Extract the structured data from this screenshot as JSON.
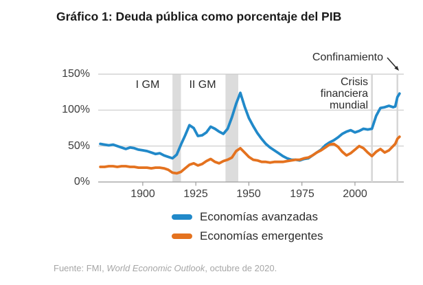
{
  "title": "Gráfico 1: Deuda pública como porcentaje del PIB",
  "y_axis_labels": [
    "150%",
    "100%",
    "50%",
    "0%"
  ],
  "x_axis_labels": [
    "1900",
    "1925",
    "1950",
    "1975",
    "2000"
  ],
  "annotations": {
    "wwi": "I GM",
    "wwii": "II GM",
    "lockdown": "Confinamiento",
    "gfc_lines": [
      "Crisis",
      "financiera",
      "mundial"
    ]
  },
  "legend": {
    "items": [
      {
        "label": "Economías avanzadas",
        "color": "#2189c9"
      },
      {
        "label": "Economías emergentes",
        "color": "#e4721f"
      }
    ]
  },
  "source": {
    "prefix": "Fuente: FMI, ",
    "publication": "World Economic Outlook",
    "suffix": ", octubre de 2020."
  },
  "colors": {
    "advanced": "#2189c9",
    "emerging": "#e4721f",
    "band": "#dcdcdc",
    "event_line": "#d6d6d6",
    "grid": "#c9c9c9",
    "axis": "#9b9b9b"
  },
  "chart_data": {
    "type": "line",
    "title": "Deuda pública como porcentaje del PIB",
    "xlabel": "",
    "ylabel": "",
    "x_range": [
      1879,
      2023
    ],
    "y_range": [
      0,
      150
    ],
    "x_ticks": [
      1900,
      1925,
      1950,
      1975,
      2000
    ],
    "y_ticks": [
      0,
      50,
      100,
      150
    ],
    "grid": true,
    "legend_position": "bottom",
    "shaded_regions": [
      {
        "label": "I GM",
        "from": 1914,
        "to": 1918
      },
      {
        "label": "II GM",
        "from": 1939,
        "to": 1945
      }
    ],
    "event_lines": [
      {
        "label": "Crisis financiera mundial",
        "year": 2008
      },
      {
        "label": "Confinamiento",
        "year": 2020
      }
    ],
    "series": [
      {
        "name": "Economías avanzadas",
        "color": "#2189c9",
        "points": [
          [
            1880,
            53
          ],
          [
            1882,
            52
          ],
          [
            1884,
            51
          ],
          [
            1886,
            52
          ],
          [
            1888,
            50
          ],
          [
            1890,
            48
          ],
          [
            1892,
            46
          ],
          [
            1894,
            48
          ],
          [
            1896,
            47
          ],
          [
            1898,
            45
          ],
          [
            1900,
            44
          ],
          [
            1902,
            43
          ],
          [
            1904,
            41
          ],
          [
            1906,
            39
          ],
          [
            1908,
            40
          ],
          [
            1910,
            37
          ],
          [
            1912,
            35
          ],
          [
            1914,
            33
          ],
          [
            1916,
            38
          ],
          [
            1918,
            52
          ],
          [
            1920,
            65
          ],
          [
            1922,
            79
          ],
          [
            1924,
            75
          ],
          [
            1926,
            64
          ],
          [
            1928,
            65
          ],
          [
            1930,
            69
          ],
          [
            1932,
            77
          ],
          [
            1934,
            74
          ],
          [
            1936,
            70
          ],
          [
            1938,
            67
          ],
          [
            1940,
            74
          ],
          [
            1942,
            90
          ],
          [
            1944,
            109
          ],
          [
            1946,
            124
          ],
          [
            1948,
            105
          ],
          [
            1950,
            89
          ],
          [
            1952,
            78
          ],
          [
            1954,
            68
          ],
          [
            1956,
            60
          ],
          [
            1958,
            53
          ],
          [
            1960,
            48
          ],
          [
            1962,
            44
          ],
          [
            1964,
            40
          ],
          [
            1966,
            36
          ],
          [
            1968,
            33
          ],
          [
            1970,
            31
          ],
          [
            1972,
            31
          ],
          [
            1974,
            30
          ],
          [
            1976,
            32
          ],
          [
            1978,
            33
          ],
          [
            1980,
            37
          ],
          [
            1982,
            41
          ],
          [
            1984,
            45
          ],
          [
            1986,
            51
          ],
          [
            1988,
            55
          ],
          [
            1990,
            58
          ],
          [
            1992,
            62
          ],
          [
            1994,
            67
          ],
          [
            1996,
            70
          ],
          [
            1998,
            72
          ],
          [
            2000,
            69
          ],
          [
            2002,
            71
          ],
          [
            2004,
            74
          ],
          [
            2006,
            73
          ],
          [
            2008,
            74
          ],
          [
            2010,
            92
          ],
          [
            2012,
            103
          ],
          [
            2014,
            104
          ],
          [
            2016,
            106
          ],
          [
            2018,
            104
          ],
          [
            2019,
            105
          ],
          [
            2020,
            118
          ],
          [
            2021,
            123
          ]
        ]
      },
      {
        "name": "Economías emergentes",
        "color": "#e4721f",
        "points": [
          [
            1880,
            21
          ],
          [
            1882,
            21
          ],
          [
            1884,
            22
          ],
          [
            1886,
            22
          ],
          [
            1888,
            21
          ],
          [
            1890,
            22
          ],
          [
            1892,
            22
          ],
          [
            1894,
            21
          ],
          [
            1896,
            21
          ],
          [
            1898,
            20
          ],
          [
            1900,
            20
          ],
          [
            1902,
            20
          ],
          [
            1904,
            19
          ],
          [
            1906,
            20
          ],
          [
            1908,
            20
          ],
          [
            1910,
            19
          ],
          [
            1912,
            17
          ],
          [
            1914,
            13
          ],
          [
            1916,
            12
          ],
          [
            1918,
            14
          ],
          [
            1920,
            19
          ],
          [
            1922,
            24
          ],
          [
            1924,
            26
          ],
          [
            1926,
            23
          ],
          [
            1928,
            25
          ],
          [
            1930,
            29
          ],
          [
            1932,
            32
          ],
          [
            1934,
            28
          ],
          [
            1936,
            26
          ],
          [
            1938,
            29
          ],
          [
            1940,
            31
          ],
          [
            1942,
            34
          ],
          [
            1944,
            43
          ],
          [
            1946,
            47
          ],
          [
            1948,
            41
          ],
          [
            1950,
            35
          ],
          [
            1952,
            31
          ],
          [
            1954,
            30
          ],
          [
            1956,
            28
          ],
          [
            1958,
            28
          ],
          [
            1960,
            27
          ],
          [
            1962,
            28
          ],
          [
            1964,
            28
          ],
          [
            1966,
            28
          ],
          [
            1968,
            29
          ],
          [
            1970,
            30
          ],
          [
            1972,
            31
          ],
          [
            1974,
            31
          ],
          [
            1976,
            33
          ],
          [
            1978,
            34
          ],
          [
            1980,
            37
          ],
          [
            1982,
            41
          ],
          [
            1984,
            44
          ],
          [
            1986,
            48
          ],
          [
            1988,
            52
          ],
          [
            1990,
            53
          ],
          [
            1992,
            49
          ],
          [
            1994,
            42
          ],
          [
            1996,
            37
          ],
          [
            1998,
            40
          ],
          [
            2000,
            45
          ],
          [
            2002,
            50
          ],
          [
            2004,
            47
          ],
          [
            2006,
            41
          ],
          [
            2008,
            36
          ],
          [
            2010,
            42
          ],
          [
            2012,
            46
          ],
          [
            2014,
            41
          ],
          [
            2016,
            44
          ],
          [
            2018,
            50
          ],
          [
            2019,
            53
          ],
          [
            2020,
            60
          ],
          [
            2021,
            63
          ]
        ]
      }
    ]
  }
}
